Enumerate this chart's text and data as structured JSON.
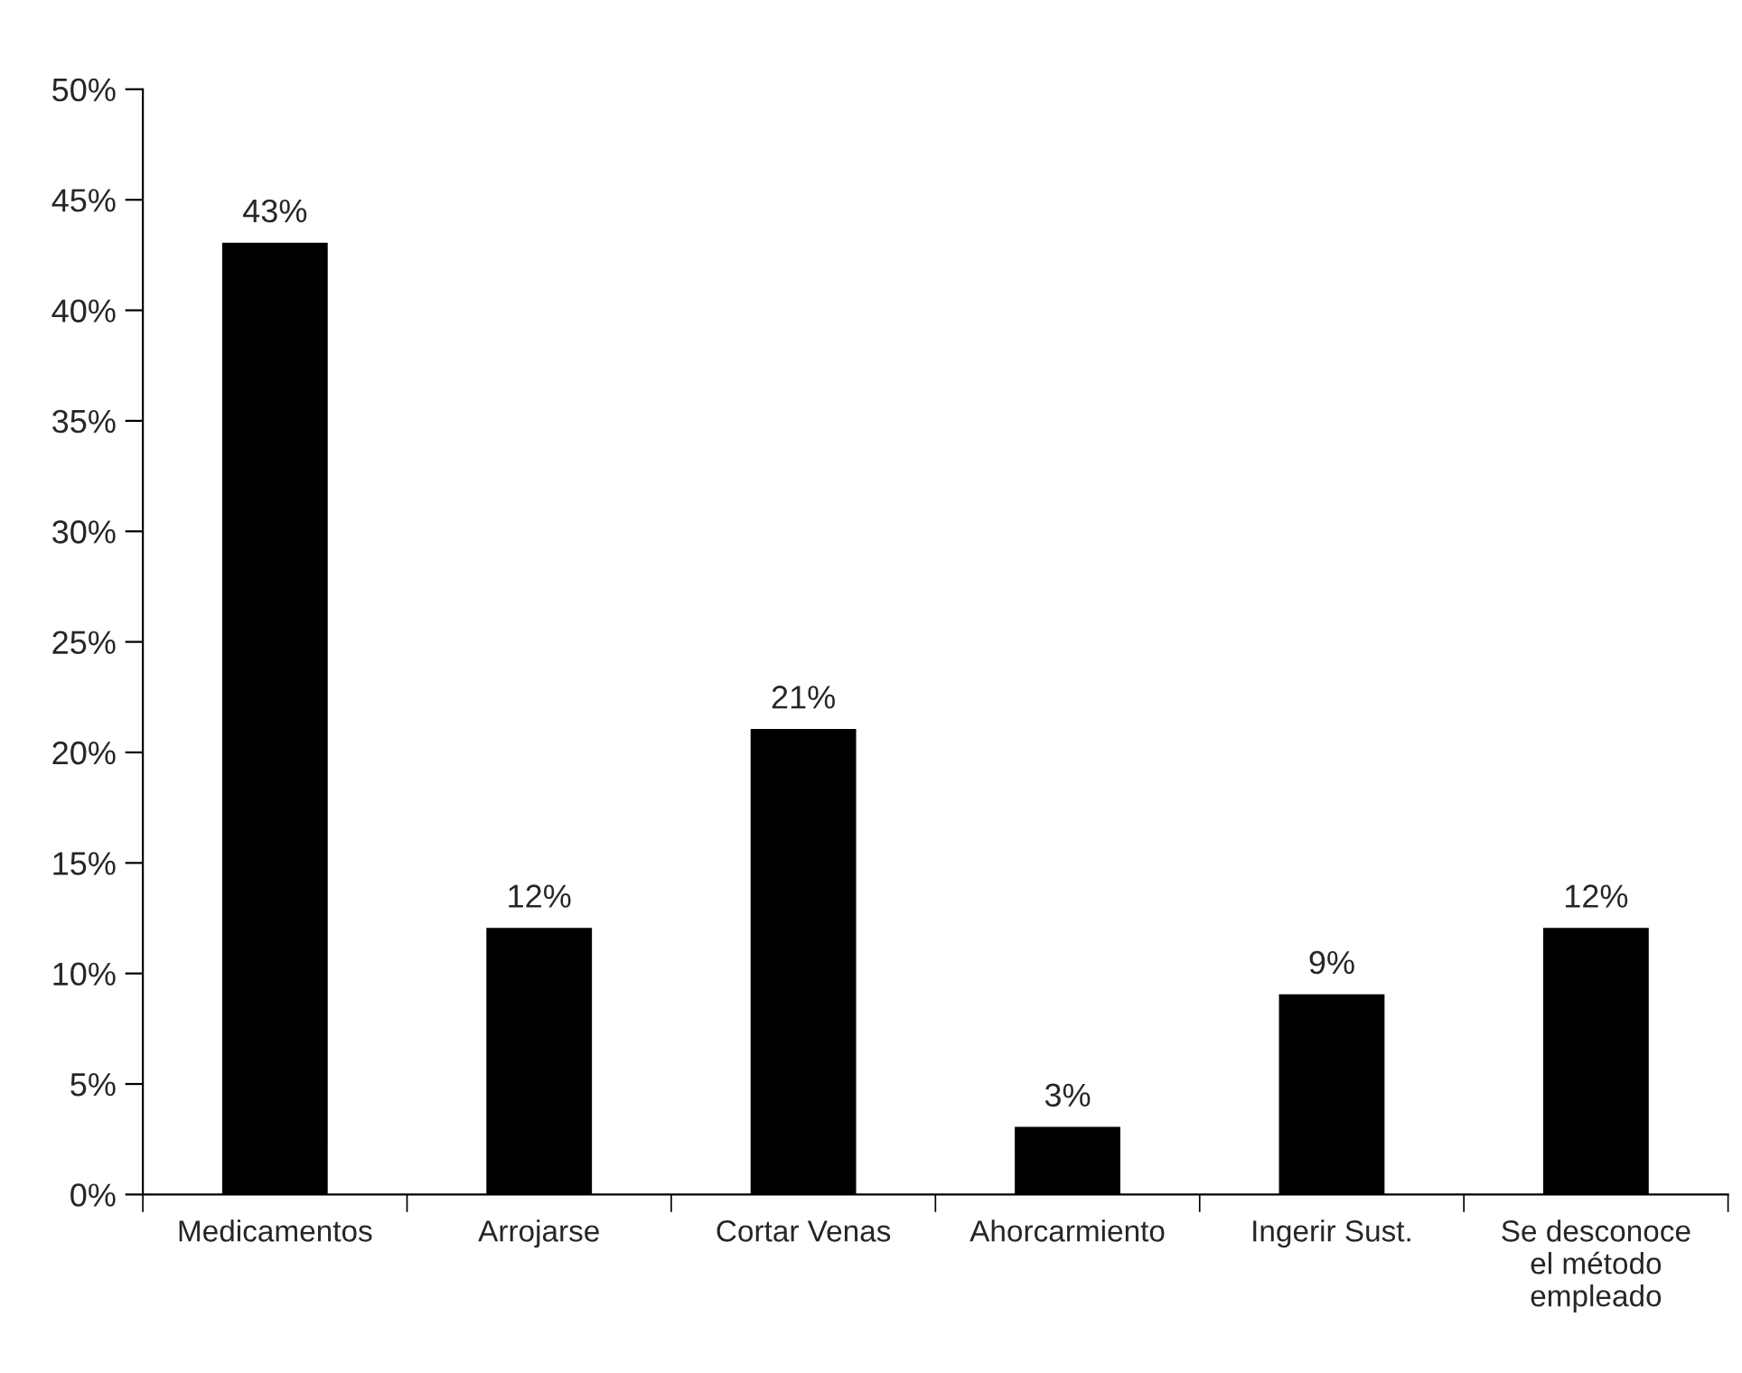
{
  "chart_data": {
    "type": "bar",
    "categories": [
      "Medicamentos",
      "Arrojarse",
      "Cortar Venas",
      "Ahorcarmiento",
      "Ingerir Sust.",
      "Se desconoce\nel método\nempleado"
    ],
    "values": [
      43,
      12,
      21,
      3,
      9,
      12
    ],
    "value_labels": [
      "43%",
      "12%",
      "21%",
      "3%",
      "9%",
      "12%"
    ],
    "color": "#000000",
    "ylim": [
      0,
      50
    ],
    "yticks": [
      {
        "value": 0,
        "label": "0%"
      },
      {
        "value": 5,
        "label": "5%"
      },
      {
        "value": 10,
        "label": "10%"
      },
      {
        "value": 15,
        "label": "15%"
      },
      {
        "value": 20,
        "label": "20%"
      },
      {
        "value": 25,
        "label": "25%"
      },
      {
        "value": 30,
        "label": "30%"
      },
      {
        "value": 35,
        "label": "35%"
      },
      {
        "value": 40,
        "label": "40%"
      },
      {
        "value": 45,
        "label": "45%"
      },
      {
        "value": 50,
        "label": "50%"
      }
    ],
    "grid": false,
    "legend": false
  }
}
